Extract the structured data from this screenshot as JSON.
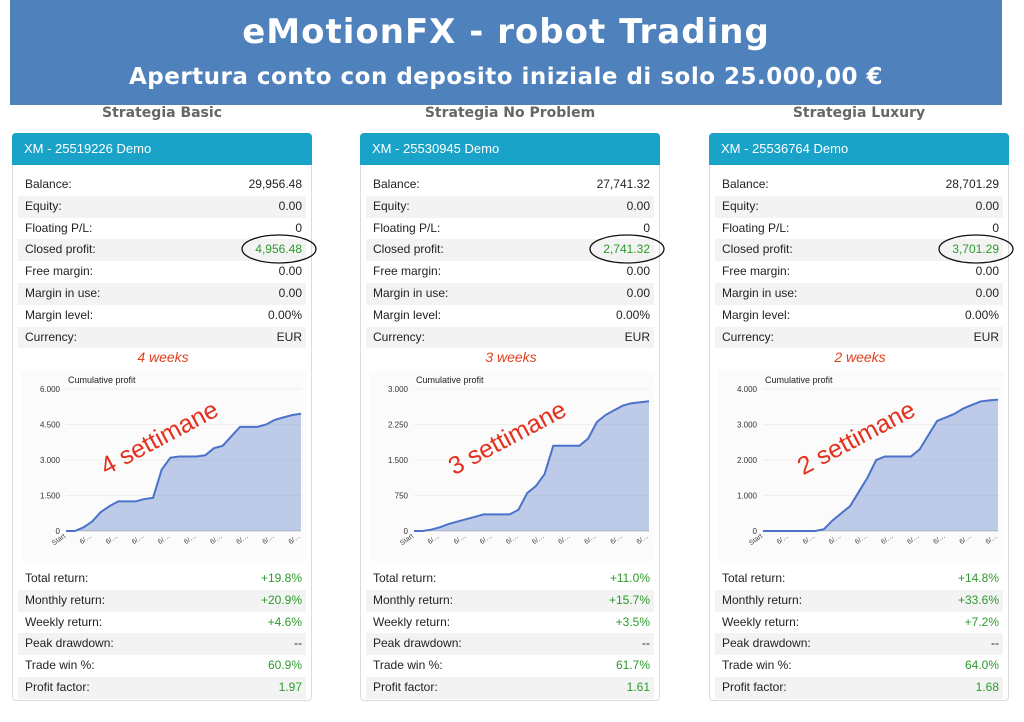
{
  "header": {
    "title": "eMotionFX - robot Trading",
    "subtitle": "Apertura conto con deposito iniziale di solo 25.000,00 €"
  },
  "panels": [
    {
      "strategy": "Strategia Basic",
      "account": "XM - 25519226 Demo",
      "stats": [
        [
          "Balance:",
          "29,956.48"
        ],
        [
          "Equity:",
          "0.00"
        ],
        [
          "Floating P/L:",
          "0"
        ],
        [
          "Closed profit:",
          "4,956.48"
        ],
        [
          "Free margin:",
          "0.00"
        ],
        [
          "Margin in use:",
          "0.00"
        ],
        [
          "Margin level:",
          "0.00%"
        ],
        [
          "Currency:",
          "EUR"
        ]
      ],
      "period": "4 weeks",
      "note": "4 settimane",
      "chart": {
        "type": "area",
        "title": "Cumulative profit",
        "color": "#4a72c9",
        "categories": [
          "Start",
          null,
          null,
          "6/…",
          null,
          null,
          "6/…",
          null,
          null,
          "6/…",
          null,
          null,
          "6/…",
          null,
          null,
          "6/…",
          null,
          null,
          "6/…",
          null,
          null,
          "6/…",
          null,
          null,
          "6/…",
          null,
          null,
          "6/…"
        ],
        "values": [
          0,
          0,
          150,
          400,
          800,
          1050,
          1250,
          1250,
          1250,
          1350,
          1400,
          2600,
          3100,
          3150,
          3150,
          3150,
          3200,
          3500,
          3600,
          4000,
          4400,
          4400,
          4400,
          4500,
          4700,
          4800,
          4900,
          4956
        ],
        "ylim": [
          0,
          6000
        ],
        "yticks": [
          0,
          {
            "value": 1500,
            "label": "1.500"
          },
          {
            "value": 3000,
            "label": "3.000"
          },
          {
            "value": 4500,
            "label": "4.500"
          },
          {
            "value": 6000,
            "label": "6.000"
          }
        ]
      },
      "returns": [
        [
          "Total return:",
          "+19.8%"
        ],
        [
          "Monthly return:",
          "+20.9%"
        ],
        [
          "Weekly return:",
          "+4.6%"
        ],
        [
          "Peak drawdown:",
          "--"
        ],
        [
          "Trade win %:",
          "60.9%"
        ],
        [
          "Profit factor:",
          "1.97"
        ]
      ]
    },
    {
      "strategy": "Strategia No Problem",
      "account": "XM - 25530945 Demo",
      "stats": [
        [
          "Balance:",
          "27,741.32"
        ],
        [
          "Equity:",
          "0.00"
        ],
        [
          "Floating P/L:",
          "0"
        ],
        [
          "Closed profit:",
          "2,741.32"
        ],
        [
          "Free margin:",
          "0.00"
        ],
        [
          "Margin in use:",
          "0.00"
        ],
        [
          "Margin level:",
          "0.00%"
        ],
        [
          "Currency:",
          "EUR"
        ]
      ],
      "period": "3 weeks",
      "note": "3 settimane",
      "chart": {
        "type": "area",
        "title": "Cumulative profit",
        "color": "#4a72c9",
        "categories": [
          "Start",
          null,
          null,
          "6/…",
          null,
          null,
          "6/…",
          null,
          null,
          "6/…",
          null,
          null,
          "6/…",
          null,
          null,
          "6/…",
          null,
          null,
          "6/…",
          null,
          null,
          "6/…",
          null,
          null,
          "6/…",
          null,
          null,
          "6/…"
        ],
        "values": [
          0,
          0,
          30,
          80,
          150,
          200,
          250,
          300,
          350,
          350,
          350,
          350,
          450,
          800,
          950,
          1200,
          1800,
          1800,
          1800,
          1800,
          1950,
          2300,
          2450,
          2550,
          2650,
          2700,
          2720,
          2741
        ],
        "ylim": [
          0,
          3000
        ],
        "yticks": [
          0,
          750,
          {
            "value": 1500,
            "label": "1.500"
          },
          {
            "value": 2250,
            "label": "2.250"
          },
          {
            "value": 3000,
            "label": "3.000"
          }
        ]
      },
      "returns": [
        [
          "Total return:",
          "+11.0%"
        ],
        [
          "Monthly return:",
          "+15.7%"
        ],
        [
          "Weekly return:",
          "+3.5%"
        ],
        [
          "Peak drawdown:",
          "--"
        ],
        [
          "Trade win %:",
          "61.7%"
        ],
        [
          "Profit factor:",
          "1.61"
        ]
      ]
    },
    {
      "strategy": "Strategia Luxury",
      "account": "XM - 25536764 Demo",
      "stats": [
        [
          "Balance:",
          "28,701.29"
        ],
        [
          "Equity:",
          "0.00"
        ],
        [
          "Floating P/L:",
          "0"
        ],
        [
          "Closed profit:",
          "3,701.29"
        ],
        [
          "Free margin:",
          "0.00"
        ],
        [
          "Margin in use:",
          "0.00"
        ],
        [
          "Margin level:",
          "0.00%"
        ],
        [
          "Currency:",
          "EUR"
        ]
      ],
      "period": "2 weeks",
      "note": "2 settimane",
      "chart": {
        "type": "area",
        "title": "Cumulative profit",
        "color": "#4a72c9",
        "categories": [
          "Start",
          null,
          null,
          "6/…",
          null,
          null,
          "6/…",
          null,
          null,
          "6/…",
          null,
          null,
          "6/…",
          null,
          null,
          "6/…",
          null,
          null,
          "6/…",
          null,
          null,
          "6/…",
          null,
          null,
          "6/…",
          null,
          null,
          "6/…"
        ],
        "values": [
          0,
          0,
          0,
          0,
          0,
          0,
          0,
          50,
          300,
          500,
          700,
          1100,
          1500,
          2000,
          2100,
          2100,
          2100,
          2100,
          2300,
          2700,
          3100,
          3200,
          3300,
          3450,
          3550,
          3650,
          3680,
          3701
        ],
        "ylim": [
          0,
          4000
        ],
        "yticks": [
          0,
          {
            "value": 1000,
            "label": "1.000"
          },
          {
            "value": 2000,
            "label": "2.000"
          },
          {
            "value": 3000,
            "label": "3.000"
          },
          {
            "value": 4000,
            "label": "4.000"
          }
        ]
      },
      "returns": [
        [
          "Total return:",
          "+14.8%"
        ],
        [
          "Monthly return:",
          "+33.6%"
        ],
        [
          "Weekly return:",
          "+7.2%"
        ],
        [
          "Peak drawdown:",
          "--"
        ],
        [
          "Trade win %:",
          "64.0%"
        ],
        [
          "Profit factor:",
          "1.68"
        ]
      ]
    }
  ]
}
